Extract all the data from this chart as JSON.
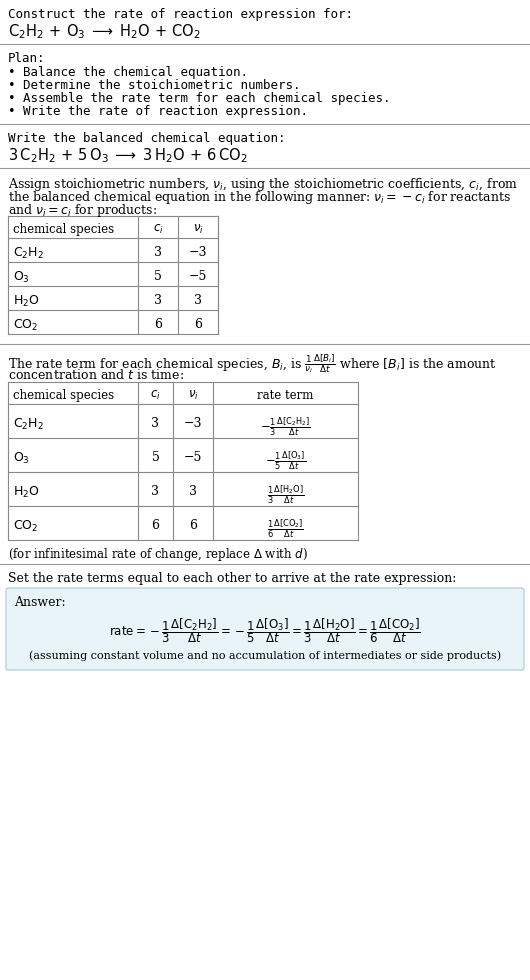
{
  "bg_color": "#ffffff",
  "text_color": "#000000",
  "title_line1": "Construct the rate of reaction expression for:",
  "plan_title": "Plan:",
  "plan_items": [
    "• Balance the chemical equation.",
    "• Determine the stoichiometric numbers.",
    "• Assemble the rate term for each chemical species.",
    "• Write the rate of reaction expression."
  ],
  "balanced_label": "Write the balanced chemical equation:",
  "assign_para": "Assign stoichiometric numbers, $\\nu_i$, using the stoichiometric coefficients, $c_i$, from the balanced chemical equation in the following manner: $\\nu_i = -c_i$ for reactants and $\\nu_i = c_i$ for products:",
  "table1_species": [
    "$\\mathrm{C_2H_2}$",
    "$\\mathrm{O_3}$",
    "$\\mathrm{H_2O}$",
    "$\\mathrm{CO_2}$"
  ],
  "table1_ci": [
    "3",
    "5",
    "3",
    "6"
  ],
  "table1_vi": [
    "−3",
    "−5",
    "3",
    "6"
  ],
  "rate_para1": "The rate term for each chemical species, $B_i$, is $\\frac{1}{\\nu_i}\\frac{\\Delta[B_i]}{\\Delta t}$ where $[B_i]$ is the amount",
  "rate_para2": "concentration and $t$ is time:",
  "table2_species": [
    "$\\mathrm{C_2H_2}$",
    "$\\mathrm{O_3}$",
    "$\\mathrm{H_2O}$",
    "$\\mathrm{CO_2}$"
  ],
  "table2_ci": [
    "3",
    "5",
    "3",
    "6"
  ],
  "table2_vi": [
    "−3",
    "−5",
    "3",
    "6"
  ],
  "table2_rate_sign": [
    "−",
    "−",
    "",
    ""
  ],
  "table2_rate_num": [
    "1",
    "1",
    "1",
    "1"
  ],
  "table2_rate_den": [
    "3",
    "5",
    "3",
    "6"
  ],
  "table2_rate_species": [
    "$\\Delta[\\mathrm{C_2H_2}]$",
    "$\\Delta[\\mathrm{O_3}]$",
    "$\\Delta[\\mathrm{H_2O}]$",
    "$\\Delta[\\mathrm{CO_2}]$"
  ],
  "infinitesimal_note": "(for infinitesimal rate of change, replace Δ with d)",
  "set_equal_text": "Set the rate terms equal to each other to arrive at the rate expression:",
  "answer_label": "Answer:",
  "answer_box_color": "#e8f4f8",
  "answer_note": "(assuming constant volume and no accumulation of intermediates or side products)",
  "line_color": "#999999",
  "table_line_color": "#888888"
}
